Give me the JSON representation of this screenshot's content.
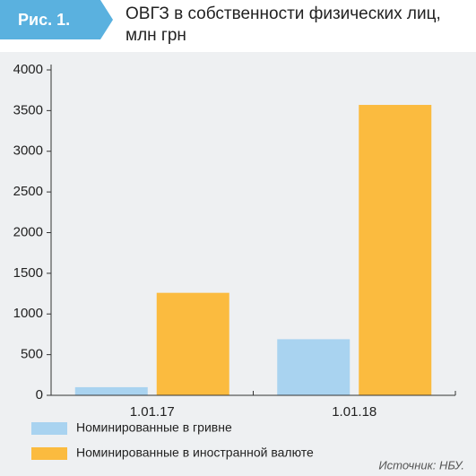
{
  "badge": "Рис. 1.",
  "chart_data": {
    "type": "bar",
    "title": "ОВГЗ в собственности физических лиц, млн грн",
    "categories": [
      "1.01.17",
      "1.01.18"
    ],
    "series": [
      {
        "name": "Номинированные в гривне",
        "color": "#a9d3f0",
        "values": [
          100,
          690
        ]
      },
      {
        "name": "Номинированные в иностранной валюте",
        "color": "#fbbb3f",
        "values": [
          1260,
          3570
        ]
      }
    ],
    "ylim": [
      0,
      4000
    ],
    "yticks": [
      0,
      500,
      1000,
      1500,
      2000,
      2500,
      3000,
      3500,
      4000
    ],
    "source": "Источник: НБУ."
  }
}
